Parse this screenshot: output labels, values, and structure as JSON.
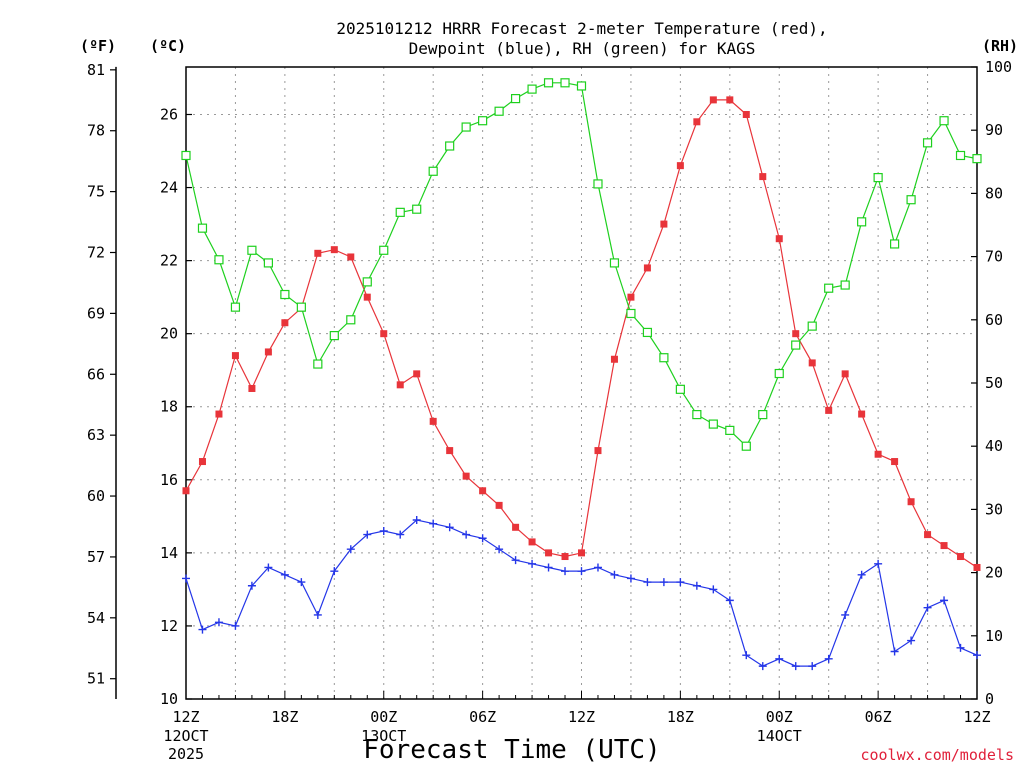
{
  "chart_data": {
    "type": "line",
    "title_line1": "2025101212 HRRR Forecast 2-meter Temperature (red),",
    "title_line2": "Dewpoint (blue), RH (green) for KAGS",
    "xlabel": "Forecast Time (UTC)",
    "units": {
      "fahrenheit": "(ºF)",
      "celsius": "(ºC)",
      "rh": "(RH)"
    },
    "credit": "coolwx.com/models",
    "x_hours": [
      0,
      1,
      2,
      3,
      4,
      5,
      6,
      7,
      8,
      9,
      10,
      11,
      12,
      13,
      14,
      15,
      16,
      17,
      18,
      19,
      20,
      21,
      22,
      23,
      24,
      25,
      26,
      27,
      28,
      29,
      30,
      31,
      32,
      33,
      34,
      35,
      36,
      37,
      38,
      39,
      40,
      41,
      42,
      43,
      44,
      45,
      46,
      47,
      48
    ],
    "x_ticks": [
      {
        "hour": 0,
        "label": "12Z",
        "sub1": "12OCT",
        "sub2": "2025"
      },
      {
        "hour": 6,
        "label": "18Z",
        "sub1": "",
        "sub2": ""
      },
      {
        "hour": 12,
        "label": "00Z",
        "sub1": "13OCT",
        "sub2": ""
      },
      {
        "hour": 18,
        "label": "06Z",
        "sub1": "",
        "sub2": ""
      },
      {
        "hour": 24,
        "label": "12Z",
        "sub1": "",
        "sub2": ""
      },
      {
        "hour": 30,
        "label": "18Z",
        "sub1": "",
        "sub2": ""
      },
      {
        "hour": 36,
        "label": "00Z",
        "sub1": "14OCT",
        "sub2": ""
      },
      {
        "hour": 42,
        "label": "06Z",
        "sub1": "",
        "sub2": ""
      },
      {
        "hour": 48,
        "label": "12Z",
        "sub1": "",
        "sub2": ""
      }
    ],
    "xlim": [
      0,
      48
    ],
    "celsius_axis": {
      "ylim": [
        10,
        27.3
      ],
      "ticks": [
        10,
        12,
        14,
        16,
        18,
        20,
        22,
        24,
        26
      ]
    },
    "fahrenheit_axis": {
      "ticks": [
        51,
        54,
        57,
        60,
        63,
        66,
        69,
        72,
        75,
        78,
        81
      ]
    },
    "rh_axis": {
      "ylim": [
        0,
        100
      ],
      "ticks": [
        0,
        10,
        20,
        30,
        40,
        50,
        60,
        70,
        80,
        90,
        100
      ]
    },
    "series": [
      {
        "axis": "celsius",
        "color": "#e8343a",
        "marker": "filled-square",
        "values": [
          15.7,
          16.5,
          17.8,
          19.4,
          18.5,
          19.5,
          20.3,
          20.7,
          22.2,
          22.3,
          22.1,
          21.0,
          20.0,
          18.6,
          18.9,
          17.6,
          16.8,
          16.1,
          15.7,
          15.3,
          14.7,
          14.3,
          14.0,
          13.9,
          14.0,
          16.8,
          19.3,
          21.0,
          21.8,
          23.0,
          24.6,
          25.8,
          26.4,
          26.4,
          26.0,
          24.3,
          22.6,
          20.0,
          19.2,
          17.9,
          18.9,
          17.8,
          16.7,
          16.5,
          15.4,
          14.5,
          14.2,
          13.9,
          13.6
        ]
      },
      {
        "axis": "celsius",
        "color": "#2436e8",
        "marker": "plus",
        "values": [
          13.3,
          11.9,
          12.1,
          12.0,
          13.1,
          13.6,
          13.4,
          13.2,
          12.3,
          13.5,
          14.1,
          14.5,
          14.6,
          14.5,
          14.9,
          14.8,
          14.7,
          14.5,
          14.4,
          14.1,
          13.8,
          13.7,
          13.6,
          13.5,
          13.5,
          13.6,
          13.4,
          13.3,
          13.2,
          13.2,
          13.2,
          13.1,
          13.0,
          12.7,
          11.2,
          10.9,
          11.1,
          10.9,
          10.9,
          11.1,
          12.3,
          13.4,
          13.7,
          11.3,
          11.6,
          12.5,
          12.7,
          11.4,
          11.2
        ]
      },
      {
        "axis": "rh",
        "color": "#1ed01e",
        "marker": "open-square",
        "values": [
          86,
          74.5,
          69.5,
          62,
          71,
          69,
          64,
          62,
          53,
          57.5,
          60,
          66,
          71,
          77,
          77.5,
          83.5,
          87.5,
          90.5,
          91.5,
          93,
          95,
          96.5,
          97.5,
          97.5,
          97,
          81.5,
          69,
          61,
          58,
          54,
          49,
          45,
          43.5,
          42.5,
          40,
          45,
          51.5,
          56,
          59,
          65,
          65.5,
          75.5,
          82.5,
          72,
          79,
          88,
          91.5,
          86,
          85.5
        ]
      }
    ]
  }
}
